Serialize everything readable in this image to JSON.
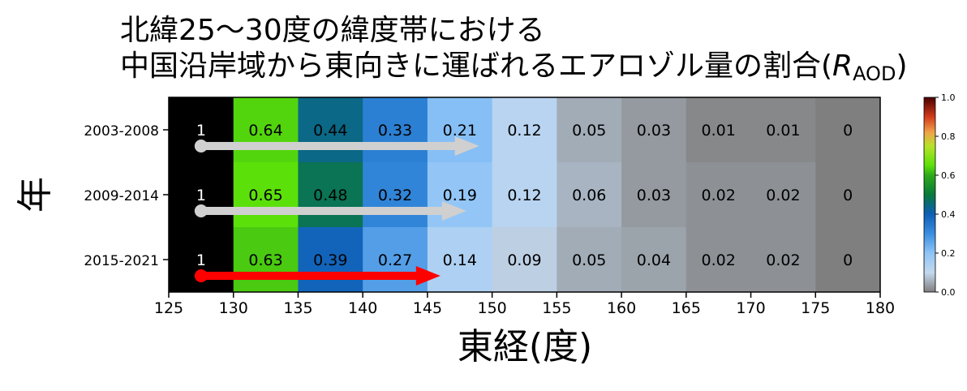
{
  "title": {
    "line1": "北緯25〜30度の緯度帯における",
    "line2_prefix": "中国沿岸域から東向きに運ばれるエアロゾル量の割合(",
    "line2_symbol": "R",
    "line2_subscript": "AOD",
    "line2_suffix": ")"
  },
  "chart_data": {
    "type": "heatmap",
    "xlabel": "東経(度)",
    "ylabel": "年",
    "x_edges": [
      125,
      130,
      135,
      140,
      145,
      150,
      155,
      160,
      165,
      170,
      175,
      180
    ],
    "x_ticks": [
      "125",
      "130",
      "135",
      "140",
      "145",
      "150",
      "155",
      "160",
      "165",
      "170",
      "175",
      "180"
    ],
    "rows": [
      {
        "label": "2003-2008",
        "values": [
          1,
          0.64,
          0.44,
          0.33,
          0.21,
          0.12,
          0.05,
          0.03,
          0.01,
          0.01,
          0
        ]
      },
      {
        "label": "2009-2014",
        "values": [
          1,
          0.65,
          0.48,
          0.32,
          0.19,
          0.12,
          0.06,
          0.03,
          0.02,
          0.02,
          0
        ]
      },
      {
        "label": "2015-2021",
        "values": [
          1,
          0.63,
          0.39,
          0.27,
          0.14,
          0.09,
          0.05,
          0.04,
          0.02,
          0.02,
          0
        ]
      }
    ],
    "value_labels": [
      [
        "1",
        "0.64",
        "0.44",
        "0.33",
        "0.21",
        "0.12",
        "0.05",
        "0.03",
        "0.01",
        "0.01",
        "0"
      ],
      [
        "1",
        "0.65",
        "0.48",
        "0.32",
        "0.19",
        "0.12",
        "0.06",
        "0.03",
        "0.02",
        "0.02",
        "0"
      ],
      [
        "1",
        "0.63",
        "0.39",
        "0.27",
        "0.14",
        "0.09",
        "0.05",
        "0.04",
        "0.02",
        "0.02",
        "0"
      ]
    ],
    "arrows": [
      {
        "row": 0,
        "x_start": 127.5,
        "x_end": 149,
        "color": "#d0d0d0"
      },
      {
        "row": 1,
        "x_start": 127.5,
        "x_end": 148,
        "color": "#d0d0d0"
      },
      {
        "row": 2,
        "x_start": 127.5,
        "x_end": 146,
        "color": "#ff0000"
      }
    ],
    "colorbar": {
      "range": [
        0.0,
        1.0
      ],
      "ticks": [
        "0.0",
        "0.2",
        "0.4",
        "0.6",
        "0.8",
        "1.0"
      ],
      "tick_values": [
        0.0,
        0.2,
        0.4,
        0.6,
        0.8,
        1.0
      ]
    },
    "grid": false,
    "legend": "none"
  }
}
